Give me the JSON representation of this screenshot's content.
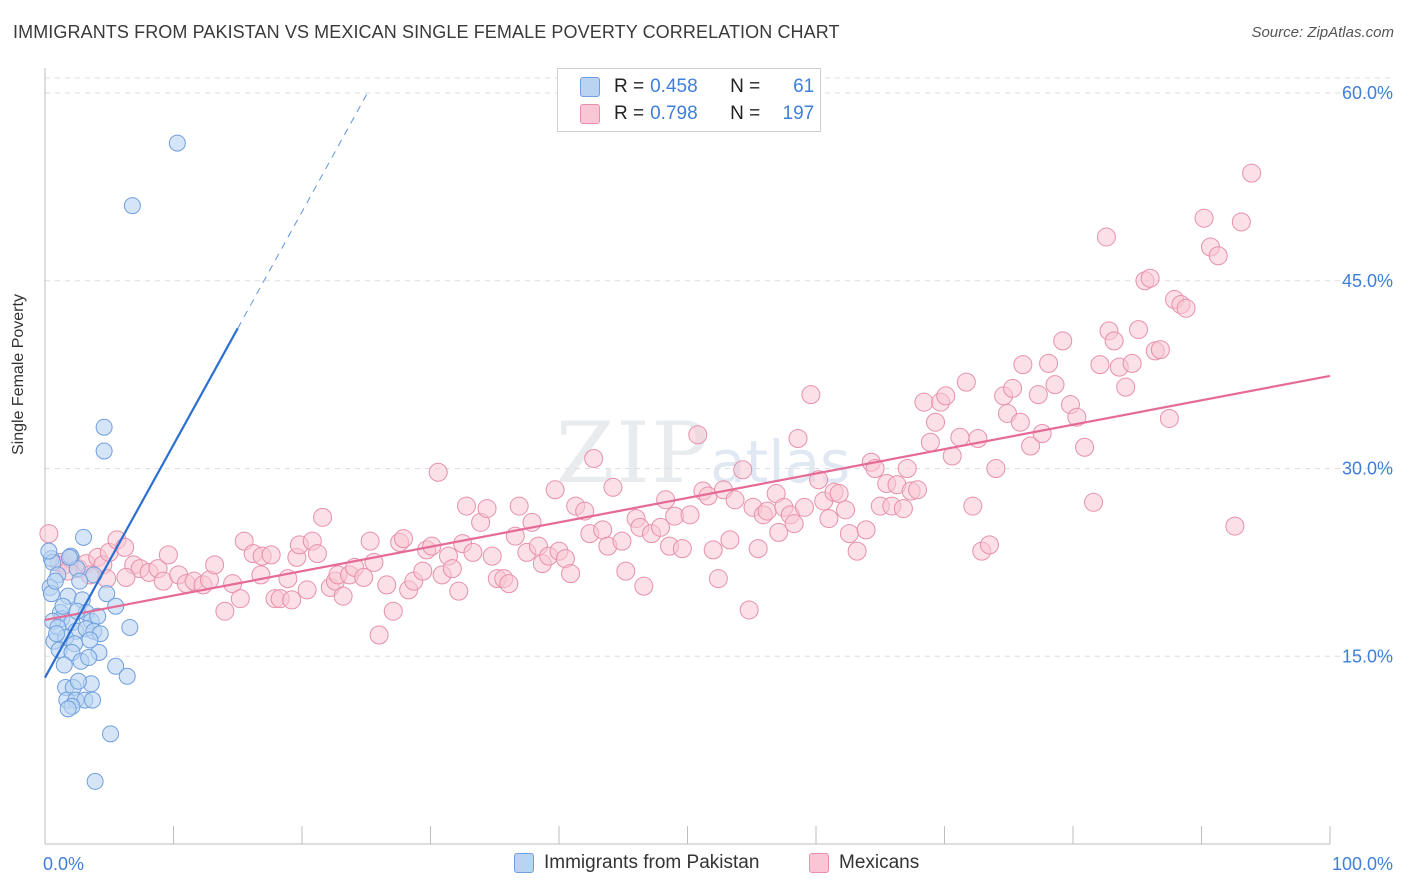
{
  "title": "IMMIGRANTS FROM PAKISTAN VS MEXICAN SINGLE FEMALE POVERTY CORRELATION CHART",
  "source": "Source: ZipAtlas.com",
  "watermark": {
    "zip": "ZIP",
    "atlas": "atlas"
  },
  "legend": {
    "rows": [
      {
        "r_label": "R =",
        "r": "0.458",
        "n_label": "N =",
        "n": "61"
      },
      {
        "r_label": "R =",
        "r": "0.798",
        "n_label": "N =",
        "n": "197"
      }
    ]
  },
  "bottom_legend": [
    "Immigrants from Pakistan",
    "Mexicans"
  ],
  "colors": {
    "blue_fill": "#b9d3f2",
    "blue_stroke": "#6f9fde",
    "blue_line": "#2b6fd1",
    "pink_fill": "#f8c6d4",
    "pink_stroke": "#e890ab",
    "pink_line": "#e56a96",
    "tick_label": "#3f7fd9",
    "grid": "#dedede"
  },
  "chart_data": {
    "type": "scatter",
    "title": "IMMIGRANTS FROM PAKISTAN VS MEXICAN SINGLE FEMALE POVERTY CORRELATION CHART",
    "xlabel": "",
    "ylabel": "Single Female Poverty",
    "xlim": [
      0,
      100
    ],
    "ylim": [
      0,
      62
    ],
    "x_tick_labels": [
      "0.0%",
      "100.0%"
    ],
    "y_ticks": [
      15,
      30,
      45,
      60
    ],
    "y_tick_labels": [
      "15.0%",
      "30.0%",
      "45.0%",
      "60.0%"
    ],
    "grid": true,
    "series": [
      {
        "name": "Immigrants from Pakistan",
        "R": 0.458,
        "N": 61,
        "trend": {
          "x0": 0,
          "y0": 13.3,
          "x1": 15,
          "y1": 41.2,
          "dashed_to_x": 25.2,
          "dashed_to_y": 60.2
        },
        "points": [
          [
            10.3,
            56.0
          ],
          [
            6.8,
            51.0
          ],
          [
            4.6,
            33.3
          ],
          [
            4.6,
            31.4
          ],
          [
            0.5,
            22.8
          ],
          [
            0.6,
            22.5
          ],
          [
            2.0,
            23.0
          ],
          [
            3.0,
            24.5
          ],
          [
            1.0,
            21.5
          ],
          [
            2.5,
            22.0
          ],
          [
            3.8,
            21.5
          ],
          [
            2.7,
            21.0
          ],
          [
            0.4,
            20.5
          ],
          [
            0.5,
            20.0
          ],
          [
            1.8,
            19.8
          ],
          [
            2.9,
            19.5
          ],
          [
            4.8,
            20.0
          ],
          [
            5.5,
            19.0
          ],
          [
            1.2,
            18.5
          ],
          [
            1.3,
            18.0
          ],
          [
            2.1,
            17.7
          ],
          [
            3.2,
            18.5
          ],
          [
            3.6,
            17.8
          ],
          [
            4.1,
            18.2
          ],
          [
            0.6,
            17.8
          ],
          [
            1.0,
            17.3
          ],
          [
            2.4,
            17.0
          ],
          [
            3.2,
            17.2
          ],
          [
            3.8,
            17.0
          ],
          [
            6.6,
            17.3
          ],
          [
            0.7,
            16.2
          ],
          [
            1.6,
            16.5
          ],
          [
            2.3,
            16.0
          ],
          [
            4.3,
            16.8
          ],
          [
            1.1,
            15.5
          ],
          [
            2.1,
            15.3
          ],
          [
            4.2,
            15.3
          ],
          [
            2.8,
            14.6
          ],
          [
            1.5,
            14.3
          ],
          [
            5.5,
            14.2
          ],
          [
            6.4,
            13.4
          ],
          [
            1.6,
            12.5
          ],
          [
            2.2,
            12.5
          ],
          [
            3.6,
            12.8
          ],
          [
            1.7,
            11.5
          ],
          [
            2.4,
            11.5
          ],
          [
            3.1,
            11.5
          ],
          [
            3.7,
            11.5
          ],
          [
            2.1,
            11.0
          ],
          [
            1.8,
            10.8
          ],
          [
            5.1,
            8.8
          ],
          [
            3.9,
            5.0
          ],
          [
            0.3,
            23.4
          ],
          [
            1.4,
            19.0
          ],
          [
            0.9,
            16.8
          ],
          [
            2.6,
            13.0
          ],
          [
            3.4,
            14.9
          ],
          [
            0.8,
            21.0
          ],
          [
            1.9,
            22.9
          ],
          [
            2.5,
            18.6
          ],
          [
            3.5,
            16.3
          ]
        ]
      },
      {
        "name": "Mexicans",
        "R": 0.798,
        "N": 197,
        "trend": {
          "x0": 0,
          "y0": 17.9,
          "x1": 100,
          "y1": 37.4
        },
        "points": [
          [
            0.3,
            24.8
          ],
          [
            1.1,
            22.5
          ],
          [
            1.5,
            22.3
          ],
          [
            2.0,
            22.8
          ],
          [
            2.6,
            22.0
          ],
          [
            3.2,
            22.4
          ],
          [
            4.1,
            22.9
          ],
          [
            4.5,
            22.3
          ],
          [
            5.0,
            23.3
          ],
          [
            5.6,
            24.3
          ],
          [
            6.2,
            23.7
          ],
          [
            1.8,
            21.8
          ],
          [
            3.5,
            21.5
          ],
          [
            4.8,
            21.2
          ],
          [
            6.9,
            22.3
          ],
          [
            7.4,
            22.0
          ],
          [
            6.3,
            21.3
          ],
          [
            8.1,
            21.7
          ],
          [
            8.8,
            22.0
          ],
          [
            9.6,
            23.1
          ],
          [
            9.2,
            21.0
          ],
          [
            10.4,
            21.5
          ],
          [
            11.0,
            20.8
          ],
          [
            11.6,
            21.0
          ],
          [
            12.3,
            20.7
          ],
          [
            12.8,
            21.1
          ],
          [
            13.2,
            22.3
          ],
          [
            14.0,
            18.6
          ],
          [
            14.6,
            20.8
          ],
          [
            15.2,
            19.6
          ],
          [
            15.5,
            24.2
          ],
          [
            16.2,
            23.2
          ],
          [
            16.8,
            21.5
          ],
          [
            16.9,
            23.0
          ],
          [
            17.6,
            23.1
          ],
          [
            17.9,
            19.6
          ],
          [
            18.3,
            19.6
          ],
          [
            18.9,
            21.2
          ],
          [
            19.2,
            19.5
          ],
          [
            19.6,
            22.9
          ],
          [
            19.8,
            23.9
          ],
          [
            20.4,
            20.3
          ],
          [
            20.8,
            24.2
          ],
          [
            21.2,
            23.2
          ],
          [
            21.6,
            26.1
          ],
          [
            22.2,
            20.5
          ],
          [
            22.6,
            21.0
          ],
          [
            22.8,
            21.5
          ],
          [
            23.2,
            19.8
          ],
          [
            23.7,
            21.5
          ],
          [
            24.1,
            22.1
          ],
          [
            24.8,
            21.3
          ],
          [
            25.3,
            24.2
          ],
          [
            25.6,
            22.5
          ],
          [
            26.0,
            16.7
          ],
          [
            26.6,
            20.7
          ],
          [
            27.1,
            18.6
          ],
          [
            27.6,
            24.1
          ],
          [
            27.9,
            24.4
          ],
          [
            28.3,
            20.3
          ],
          [
            28.7,
            21.0
          ],
          [
            29.4,
            21.8
          ],
          [
            29.7,
            23.5
          ],
          [
            30.1,
            23.8
          ],
          [
            30.6,
            29.7
          ],
          [
            30.9,
            21.5
          ],
          [
            31.4,
            23.0
          ],
          [
            31.7,
            22.0
          ],
          [
            32.2,
            20.2
          ],
          [
            32.5,
            24.0
          ],
          [
            32.8,
            27.0
          ],
          [
            33.3,
            23.3
          ],
          [
            33.9,
            25.7
          ],
          [
            34.4,
            26.8
          ],
          [
            34.8,
            23.0
          ],
          [
            35.2,
            21.2
          ],
          [
            35.7,
            21.2
          ],
          [
            36.1,
            20.8
          ],
          [
            36.6,
            24.6
          ],
          [
            36.9,
            27.0
          ],
          [
            37.5,
            23.3
          ],
          [
            37.9,
            25.7
          ],
          [
            38.4,
            23.8
          ],
          [
            38.7,
            22.4
          ],
          [
            39.2,
            23.0
          ],
          [
            39.7,
            28.3
          ],
          [
            40.0,
            23.4
          ],
          [
            40.5,
            22.8
          ],
          [
            40.9,
            21.6
          ],
          [
            41.3,
            27.0
          ],
          [
            42.0,
            26.6
          ],
          [
            42.4,
            24.8
          ],
          [
            42.7,
            30.8
          ],
          [
            43.4,
            25.1
          ],
          [
            43.8,
            23.8
          ],
          [
            44.2,
            28.5
          ],
          [
            44.9,
            24.2
          ],
          [
            45.2,
            21.8
          ],
          [
            46.0,
            26.0
          ],
          [
            46.3,
            25.3
          ],
          [
            46.6,
            20.6
          ],
          [
            47.2,
            24.8
          ],
          [
            47.9,
            25.3
          ],
          [
            48.3,
            27.5
          ],
          [
            48.6,
            23.8
          ],
          [
            49.0,
            26.2
          ],
          [
            49.6,
            23.6
          ],
          [
            50.2,
            26.3
          ],
          [
            50.8,
            32.7
          ],
          [
            51.2,
            28.2
          ],
          [
            51.6,
            27.8
          ],
          [
            52.0,
            23.5
          ],
          [
            52.4,
            21.2
          ],
          [
            52.8,
            28.3
          ],
          [
            53.3,
            24.3
          ],
          [
            53.7,
            27.5
          ],
          [
            54.3,
            29.9
          ],
          [
            54.8,
            18.7
          ],
          [
            55.1,
            26.9
          ],
          [
            55.5,
            23.6
          ],
          [
            55.9,
            26.3
          ],
          [
            56.2,
            26.6
          ],
          [
            56.9,
            28.0
          ],
          [
            57.1,
            24.9
          ],
          [
            57.5,
            26.9
          ],
          [
            58.0,
            26.3
          ],
          [
            58.3,
            25.6
          ],
          [
            58.6,
            32.4
          ],
          [
            59.1,
            26.9
          ],
          [
            59.6,
            35.9
          ],
          [
            60.2,
            29.1
          ],
          [
            60.6,
            27.4
          ],
          [
            61.0,
            26.0
          ],
          [
            61.4,
            28.1
          ],
          [
            61.8,
            28.0
          ],
          [
            62.3,
            26.7
          ],
          [
            62.6,
            24.8
          ],
          [
            63.2,
            23.4
          ],
          [
            63.9,
            25.1
          ],
          [
            64.3,
            30.5
          ],
          [
            64.6,
            30.0
          ],
          [
            65.0,
            27.0
          ],
          [
            65.5,
            28.8
          ],
          [
            65.9,
            27.0
          ],
          [
            66.3,
            28.7
          ],
          [
            66.8,
            26.8
          ],
          [
            67.1,
            30.0
          ],
          [
            67.4,
            28.2
          ],
          [
            67.9,
            28.3
          ],
          [
            68.4,
            35.3
          ],
          [
            68.9,
            32.1
          ],
          [
            69.3,
            33.7
          ],
          [
            69.7,
            35.3
          ],
          [
            70.1,
            35.8
          ],
          [
            70.6,
            31.0
          ],
          [
            71.2,
            32.5
          ],
          [
            71.7,
            36.9
          ],
          [
            72.2,
            27.0
          ],
          [
            72.6,
            32.4
          ],
          [
            72.9,
            23.4
          ],
          [
            73.5,
            23.9
          ],
          [
            74.0,
            30.0
          ],
          [
            74.6,
            35.8
          ],
          [
            74.9,
            34.4
          ],
          [
            75.3,
            36.4
          ],
          [
            75.9,
            33.7
          ],
          [
            76.1,
            38.3
          ],
          [
            76.7,
            31.8
          ],
          [
            77.3,
            35.9
          ],
          [
            77.6,
            32.8
          ],
          [
            78.1,
            38.4
          ],
          [
            78.6,
            36.7
          ],
          [
            79.2,
            40.2
          ],
          [
            79.8,
            35.1
          ],
          [
            80.3,
            34.1
          ],
          [
            80.9,
            31.7
          ],
          [
            81.6,
            27.3
          ],
          [
            82.1,
            38.3
          ],
          [
            82.6,
            48.5
          ],
          [
            82.8,
            41.0
          ],
          [
            83.2,
            40.2
          ],
          [
            83.6,
            38.1
          ],
          [
            84.1,
            36.5
          ],
          [
            84.6,
            38.4
          ],
          [
            85.1,
            41.1
          ],
          [
            85.6,
            45.0
          ],
          [
            86.0,
            45.2
          ],
          [
            86.4,
            39.4
          ],
          [
            86.8,
            39.5
          ],
          [
            87.5,
            34.0
          ],
          [
            87.9,
            43.5
          ],
          [
            88.4,
            43.1
          ],
          [
            88.8,
            42.8
          ],
          [
            90.2,
            50.0
          ],
          [
            90.7,
            47.7
          ],
          [
            91.3,
            47.0
          ],
          [
            92.6,
            25.4
          ],
          [
            93.1,
            49.7
          ],
          [
            93.9,
            53.6
          ]
        ]
      }
    ]
  }
}
